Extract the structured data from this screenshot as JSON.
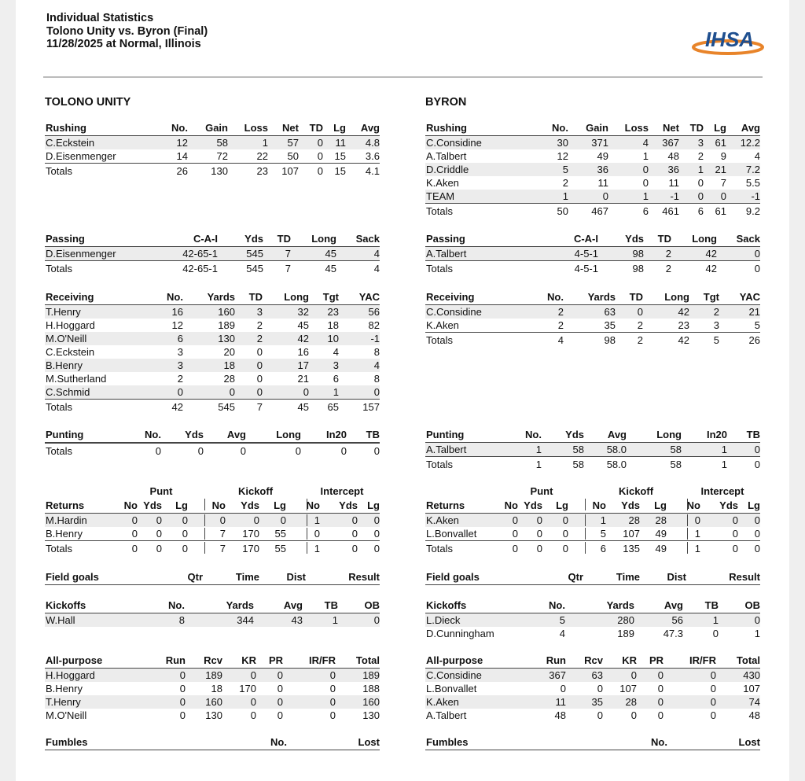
{
  "header": {
    "lines": [
      "Individual Statistics",
      "Tolono Unity vs. Byron (Final)",
      "11/28/2025 at Normal, Illinois"
    ],
    "logo": "IHSA"
  },
  "teams": [
    {
      "name": "TOLONO UNITY",
      "sections": [
        {
          "title": "Rushing",
          "columns": [
            "No.",
            "Gain",
            "Loss",
            "Net",
            "TD",
            "Lg",
            "Avg"
          ],
          "rows": [
            [
              "C.Eckstein",
              "12",
              "58",
              "1",
              "57",
              "0",
              "11",
              "4.8"
            ],
            [
              "D.Eisenmenger",
              "14",
              "72",
              "22",
              "50",
              "0",
              "15",
              "3.6"
            ]
          ],
          "totals": [
            "Totals",
            "26",
            "130",
            "23",
            "107",
            "0",
            "15",
            "4.1"
          ]
        },
        {
          "title": "Passing",
          "columns": [
            "C-A-I",
            "Yds",
            "TD",
            "Long",
            "Sack"
          ],
          "rows": [
            [
              "D.Eisenmenger",
              "42-65-1",
              "545",
              "7",
              "45",
              "4"
            ]
          ],
          "totals": [
            "Totals",
            "42-65-1",
            "545",
            "7",
            "45",
            "4"
          ]
        },
        {
          "title": "Receiving",
          "columns": [
            "No.",
            "Yards",
            "TD",
            "Long",
            "Tgt",
            "YAC"
          ],
          "rows": [
            [
              "T.Henry",
              "16",
              "160",
              "3",
              "32",
              "23",
              "56"
            ],
            [
              "H.Hoggard",
              "12",
              "189",
              "2",
              "45",
              "18",
              "82"
            ],
            [
              "M.O'Neill",
              "6",
              "130",
              "2",
              "42",
              "10",
              "-1"
            ],
            [
              "C.Eckstein",
              "3",
              "20",
              "0",
              "16",
              "4",
              "8"
            ],
            [
              "B.Henry",
              "3",
              "18",
              "0",
              "17",
              "3",
              "4"
            ],
            [
              "M.Sutherland",
              "2",
              "28",
              "0",
              "21",
              "6",
              "8"
            ],
            [
              "C.Schmid",
              "0",
              "0",
              "0",
              "0",
              "1",
              "0"
            ]
          ],
          "totals": [
            "Totals",
            "42",
            "545",
            "7",
            "45",
            "65",
            "157"
          ]
        },
        {
          "title": "Punting",
          "columns": [
            "No.",
            "Yds",
            "Avg",
            "Long",
            "In20",
            "TB"
          ],
          "rows": [],
          "totals": [
            "Totals",
            "0",
            "0",
            "0",
            "0",
            "0",
            "0"
          ]
        },
        {
          "title": "Returns",
          "groups": [
            "Punt",
            "Kickoff",
            "Intercept"
          ],
          "columns": [
            "No",
            "Yds",
            "Lg",
            "No",
            "Yds",
            "Lg",
            "No",
            "Yds",
            "Lg"
          ],
          "rows": [
            [
              "M.Hardin",
              "0",
              "0",
              "0",
              "0",
              "0",
              "0",
              "1",
              "0",
              "0"
            ],
            [
              "B.Henry",
              "0",
              "0",
              "0",
              "7",
              "170",
              "55",
              "0",
              "0",
              "0"
            ]
          ],
          "totals": [
            "Totals",
            "0",
            "0",
            "0",
            "7",
            "170",
            "55",
            "1",
            "0",
            "0"
          ]
        },
        {
          "title": "Field goals",
          "columns": [
            "Qtr",
            "Time",
            "Dist",
            "Result"
          ],
          "rows": []
        },
        {
          "title": "Kickoffs",
          "columns": [
            "No.",
            "Yards",
            "Avg",
            "TB",
            "OB"
          ],
          "rows": [
            [
              "W.Hall",
              "8",
              "344",
              "43",
              "1",
              "0"
            ]
          ]
        },
        {
          "title": "All-purpose",
          "columns": [
            "Run",
            "Rcv",
            "KR",
            "PR",
            "IR/FR",
            "Total"
          ],
          "rows": [
            [
              "H.Hoggard",
              "0",
              "189",
              "0",
              "0",
              "0",
              "189"
            ],
            [
              "B.Henry",
              "0",
              "18",
              "170",
              "0",
              "0",
              "188"
            ],
            [
              "T.Henry",
              "0",
              "160",
              "0",
              "0",
              "0",
              "160"
            ],
            [
              "M.O'Neill",
              "0",
              "130",
              "0",
              "0",
              "0",
              "130"
            ]
          ]
        },
        {
          "title": "Fumbles",
          "columns": [
            "No.",
            "Lost"
          ],
          "rows": []
        }
      ]
    },
    {
      "name": "BYRON",
      "sections": [
        {
          "title": "Rushing",
          "columns": [
            "No.",
            "Gain",
            "Loss",
            "Net",
            "TD",
            "Lg",
            "Avg"
          ],
          "rows": [
            [
              "C.Considine",
              "30",
              "371",
              "4",
              "367",
              "3",
              "61",
              "12.2"
            ],
            [
              "A.Talbert",
              "12",
              "49",
              "1",
              "48",
              "2",
              "9",
              "4"
            ],
            [
              "D.Criddle",
              "5",
              "36",
              "0",
              "36",
              "1",
              "21",
              "7.2"
            ],
            [
              "K.Aken",
              "2",
              "11",
              "0",
              "11",
              "0",
              "7",
              "5.5"
            ],
            [
              "TEAM",
              "1",
              "0",
              "1",
              "-1",
              "0",
              "0",
              "-1"
            ]
          ],
          "totals": [
            "Totals",
            "50",
            "467",
            "6",
            "461",
            "6",
            "61",
            "9.2"
          ]
        },
        {
          "title": "Passing",
          "columns": [
            "C-A-I",
            "Yds",
            "TD",
            "Long",
            "Sack"
          ],
          "rows": [
            [
              "A.Talbert",
              "4-5-1",
              "98",
              "2",
              "42",
              "0"
            ]
          ],
          "totals": [
            "Totals",
            "4-5-1",
            "98",
            "2",
            "42",
            "0"
          ]
        },
        {
          "title": "Receiving",
          "columns": [
            "No.",
            "Yards",
            "TD",
            "Long",
            "Tgt",
            "YAC"
          ],
          "rows": [
            [
              "C.Considine",
              "2",
              "63",
              "0",
              "42",
              "2",
              "21"
            ],
            [
              "K.Aken",
              "2",
              "35",
              "2",
              "23",
              "3",
              "5"
            ]
          ],
          "totals": [
            "Totals",
            "4",
            "98",
            "2",
            "42",
            "5",
            "26"
          ]
        },
        {
          "title": "Punting",
          "columns": [
            "No.",
            "Yds",
            "Avg",
            "Long",
            "In20",
            "TB"
          ],
          "rows": [
            [
              "A.Talbert",
              "1",
              "58",
              "58.0",
              "58",
              "1",
              "0"
            ]
          ],
          "totals": [
            "Totals",
            "1",
            "58",
            "58.0",
            "58",
            "1",
            "0"
          ]
        },
        {
          "title": "Returns",
          "groups": [
            "Punt",
            "Kickoff",
            "Intercept"
          ],
          "columns": [
            "No",
            "Yds",
            "Lg",
            "No",
            "Yds",
            "Lg",
            "No",
            "Yds",
            "Lg"
          ],
          "rows": [
            [
              "K.Aken",
              "0",
              "0",
              "0",
              "1",
              "28",
              "28",
              "0",
              "0",
              "0"
            ],
            [
              "L.Bonvallet",
              "0",
              "0",
              "0",
              "5",
              "107",
              "49",
              "1",
              "0",
              "0"
            ]
          ],
          "totals": [
            "Totals",
            "0",
            "0",
            "0",
            "6",
            "135",
            "49",
            "1",
            "0",
            "0"
          ]
        },
        {
          "title": "Field goals",
          "columns": [
            "Qtr",
            "Time",
            "Dist",
            "Result"
          ],
          "rows": []
        },
        {
          "title": "Kickoffs",
          "columns": [
            "No.",
            "Yards",
            "Avg",
            "TB",
            "OB"
          ],
          "rows": [
            [
              "L.Dieck",
              "5",
              "280",
              "56",
              "1",
              "0"
            ],
            [
              "D.Cunningham",
              "4",
              "189",
              "47.3",
              "0",
              "1"
            ]
          ]
        },
        {
          "title": "All-purpose",
          "columns": [
            "Run",
            "Rcv",
            "KR",
            "PR",
            "IR/FR",
            "Total"
          ],
          "rows": [
            [
              "C.Considine",
              "367",
              "63",
              "0",
              "0",
              "0",
              "430"
            ],
            [
              "L.Bonvallet",
              "0",
              "0",
              "107",
              "0",
              "0",
              "107"
            ],
            [
              "K.Aken",
              "11",
              "35",
              "28",
              "0",
              "0",
              "74"
            ],
            [
              "A.Talbert",
              "48",
              "0",
              "0",
              "0",
              "0",
              "48"
            ]
          ]
        },
        {
          "title": "Fumbles",
          "columns": [
            "No.",
            "Lost"
          ],
          "rows": []
        }
      ]
    }
  ]
}
